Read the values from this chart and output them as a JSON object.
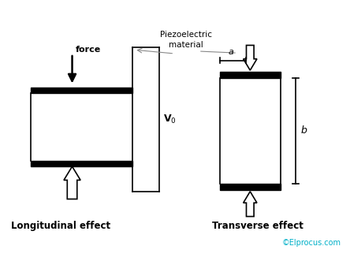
{
  "bg_color": "#ffffff",
  "label_longitudinal": "Longitudinal effect",
  "label_transverse": "Transverse effect",
  "label_force": "force",
  "label_piezo": "Piezoelectric\nmaterial",
  "label_V0": "V$_0$",
  "label_a": "a",
  "label_b": "b",
  "label_copyright": "©Elprocus.com",
  "copyright_color": "#00b0c8",
  "line_color": "#000000"
}
